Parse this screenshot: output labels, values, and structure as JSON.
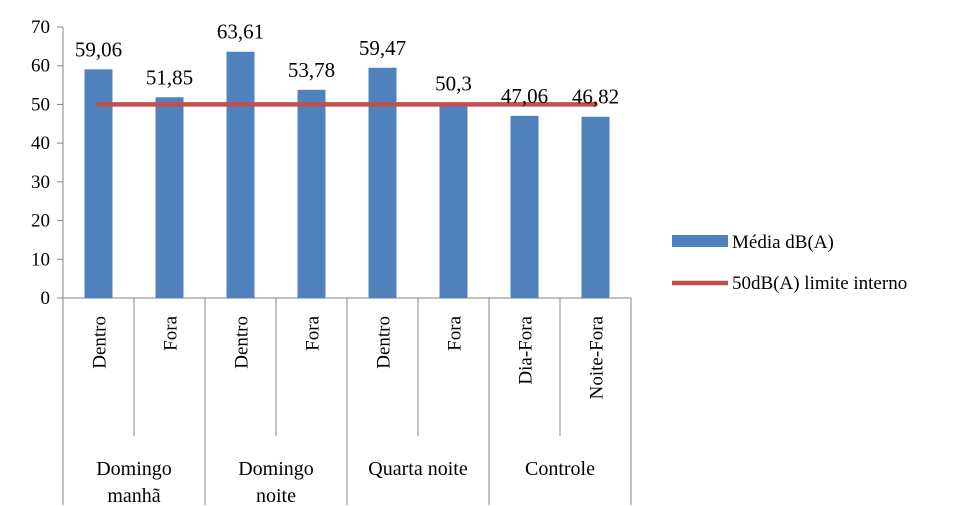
{
  "chart_data": {
    "type": "bar",
    "groups": [
      {
        "label_lines": [
          "Domingo",
          "manhã"
        ],
        "categories": [
          "Dentro",
          "Fora"
        ]
      },
      {
        "label_lines": [
          "Domingo",
          "noite"
        ],
        "categories": [
          "Dentro",
          "Fora"
        ]
      },
      {
        "label_lines": [
          "Quarta noite"
        ],
        "categories": [
          "Dentro",
          "Fora"
        ]
      },
      {
        "label_lines": [
          "Controle"
        ],
        "categories": [
          "Dia-Fora",
          "Noite-Fora"
        ]
      }
    ],
    "series": [
      {
        "name": "Média dB(A)",
        "kind": "bar",
        "color": "#4F81BD",
        "values": [
          59.06,
          51.85,
          63.61,
          53.78,
          59.47,
          50.3,
          47.06,
          46.82
        ],
        "data_labels": [
          "59,06",
          "51,85",
          "63,61",
          "53,78",
          "59,47",
          "50,3",
          "47,06",
          "46,82"
        ]
      },
      {
        "name": "50dB(A) limite interno",
        "kind": "line",
        "color": "#C0504D",
        "values": [
          50,
          50,
          50,
          50,
          50,
          50,
          50,
          50
        ]
      }
    ],
    "ylim": [
      0,
      70
    ],
    "yticks": [
      0,
      10,
      20,
      30,
      40,
      50,
      60,
      70
    ],
    "grid": false,
    "legend": "right"
  }
}
